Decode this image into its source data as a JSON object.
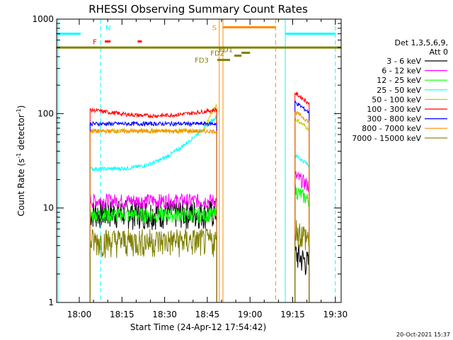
{
  "chart_data": {
    "type": "line",
    "title": "RHESSI Observing Summary Count Rates",
    "xlabel": "Start Time (24-Apr-12 17:54:42)",
    "ylabel_main": "Count Rate (s",
    "ylabel_sup": "-1",
    "ylabel_mid": " detector",
    "ylabel_sup2": "-1",
    "ylabel_end": ")",
    "yscale": "log",
    "ylim": [
      1,
      1000
    ],
    "xlim": [
      "17:54:42",
      "19:32:00"
    ],
    "xticks": [
      {
        "t": "18:00",
        "min": 0
      },
      {
        "t": "18:15",
        "min": 15
      },
      {
        "t": "18:30",
        "min": 30
      },
      {
        "t": "18:45",
        "min": 45
      },
      {
        "t": "19:00",
        "min": 60
      },
      {
        "t": "19:15",
        "min": 75
      },
      {
        "t": "19:30",
        "min": 90
      }
    ],
    "yticks": [
      {
        "label": "1",
        "v": 1
      },
      {
        "label": "10",
        "v": 10
      },
      {
        "label": "100",
        "v": 100
      },
      {
        "label": "1000",
        "v": 1000
      }
    ],
    "legend_header": [
      "Det 1,3,5,6,9,",
      "Att 0"
    ],
    "series": [
      {
        "name": "3 - 6 keV",
        "color": "#000000",
        "level1": 9,
        "level2": 3
      },
      {
        "name": "6 - 12 keV",
        "color": "#ff00ff",
        "level1": 12,
        "level2": 20
      },
      {
        "name": "12 - 25 keV",
        "color": "#00ff00",
        "level1": 8.5,
        "level2": 14
      },
      {
        "name": "25 - 50 keV",
        "color": "#00ffff",
        "level1": 26,
        "level2": 33
      },
      {
        "name": "50 - 100 keV",
        "color": "#cccc00",
        "level1": 66,
        "level2": 80
      },
      {
        "name": "100 - 300 keV",
        "color": "#ff0000",
        "level1": 100,
        "level2": 150
      },
      {
        "name": "300 - 800 keV",
        "color": "#0000ff",
        "level1": 78,
        "level2": 120
      },
      {
        "name": "800 - 7000 keV",
        "color": "#ff8c00",
        "level1": 65,
        "level2": 95
      },
      {
        "name": "7000 - 15000 keV",
        "color": "#808000",
        "level1": 4.5,
        "level2": 5.5
      }
    ],
    "markers": [
      {
        "label": "N",
        "color": "#00ffff"
      },
      {
        "label": "F",
        "color": "#ff0000"
      },
      {
        "label": "S",
        "color": "#ff8c00"
      },
      {
        "label": "FD1",
        "color": "#808000"
      },
      {
        "label": "FD2",
        "color": "#808000"
      },
      {
        "label": "FD3",
        "color": "#808000"
      }
    ],
    "footer_date": "20-Oct-2021 15:37"
  }
}
